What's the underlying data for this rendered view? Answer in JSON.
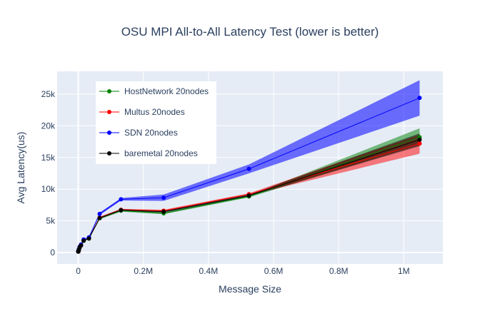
{
  "chart_data": {
    "type": "line",
    "title": "OSU MPI All-to-All Latency Test (lower is better)",
    "xlabel": "Message Size",
    "ylabel": "Avg Latency(us)",
    "xlim": [
      -65000,
      1120000
    ],
    "ylim": [
      -1800,
      28600
    ],
    "grid": true,
    "legend_position": "top-left",
    "x_ticks": [
      {
        "value": 0,
        "label": "0"
      },
      {
        "value": 200000,
        "label": "0.2M"
      },
      {
        "value": 400000,
        "label": "0.4M"
      },
      {
        "value": 600000,
        "label": "0.6M"
      },
      {
        "value": 800000,
        "label": "0.8M"
      },
      {
        "value": 1000000,
        "label": "1M"
      }
    ],
    "y_ticks": [
      {
        "value": 0,
        "label": "0"
      },
      {
        "value": 5000,
        "label": "5k"
      },
      {
        "value": 10000,
        "label": "10k"
      },
      {
        "value": 15000,
        "label": "15k"
      },
      {
        "value": 20000,
        "label": "20k"
      },
      {
        "value": 25000,
        "label": "25k"
      }
    ],
    "x": [
      1,
      2,
      4,
      8,
      16,
      32,
      64,
      128,
      256,
      512,
      1024,
      2048,
      4096,
      8192,
      16384,
      32768,
      65536,
      131072,
      262144,
      524288,
      1048576
    ],
    "series": [
      {
        "name": "HostNetwork 20nodes",
        "color": "#008000",
        "band_color": "rgba(0,128,0,0.5)",
        "values": [
          150,
          150,
          155,
          160,
          165,
          170,
          180,
          190,
          210,
          250,
          330,
          480,
          800,
          1100,
          1850,
          2200,
          5400,
          6600,
          6200,
          8850,
          18200
        ],
        "lower": [
          130,
          130,
          135,
          140,
          145,
          150,
          160,
          170,
          190,
          230,
          300,
          450,
          760,
          1050,
          1780,
          2120,
          5250,
          6450,
          6050,
          8700,
          17000
        ],
        "upper": [
          170,
          170,
          175,
          180,
          185,
          190,
          200,
          210,
          230,
          270,
          360,
          510,
          840,
          1150,
          1920,
          2280,
          5550,
          6750,
          6350,
          9000,
          19600
        ]
      },
      {
        "name": "Multus 20nodes",
        "color": "#ff0000",
        "band_color": "rgba(255,0,0,0.5)",
        "values": [
          150,
          150,
          155,
          160,
          165,
          170,
          180,
          190,
          210,
          250,
          330,
          480,
          820,
          1120,
          1900,
          2250,
          5500,
          6750,
          6600,
          9200,
          17200
        ],
        "lower": [
          130,
          130,
          135,
          140,
          145,
          150,
          160,
          170,
          190,
          230,
          300,
          450,
          780,
          1070,
          1830,
          2170,
          5350,
          6600,
          6450,
          9050,
          15600
        ],
        "upper": [
          170,
          170,
          175,
          180,
          185,
          190,
          200,
          210,
          230,
          270,
          360,
          510,
          860,
          1170,
          1970,
          2330,
          5650,
          6900,
          6750,
          9350,
          18600
        ]
      },
      {
        "name": "SDN 20nodes",
        "color": "#0000ff",
        "band_color": "rgba(0,0,255,0.55)",
        "values": [
          160,
          160,
          165,
          170,
          175,
          180,
          190,
          200,
          220,
          260,
          350,
          520,
          900,
          1250,
          2050,
          2400,
          6100,
          8400,
          8650,
          13200,
          24400
        ],
        "lower": [
          140,
          140,
          145,
          150,
          155,
          160,
          170,
          180,
          200,
          240,
          320,
          490,
          860,
          1200,
          1980,
          2320,
          5900,
          8200,
          8150,
          12500,
          21600
        ],
        "upper": [
          180,
          180,
          185,
          190,
          195,
          200,
          210,
          220,
          240,
          280,
          380,
          550,
          940,
          1300,
          2120,
          2480,
          6300,
          8600,
          9150,
          13900,
          27200
        ]
      },
      {
        "name": "baremetal 20nodes",
        "color": "#000000",
        "band_color": "rgba(0,0,0,0.5)",
        "values": [
          150,
          150,
          155,
          160,
          165,
          170,
          180,
          190,
          210,
          250,
          330,
          480,
          810,
          1110,
          1870,
          2230,
          5450,
          6700,
          6450,
          9000,
          17800
        ],
        "lower": [
          130,
          130,
          135,
          140,
          145,
          150,
          160,
          170,
          190,
          230,
          300,
          450,
          770,
          1060,
          1800,
          2150,
          5300,
          6550,
          6300,
          8850,
          16800
        ],
        "upper": [
          170,
          170,
          175,
          180,
          185,
          190,
          200,
          210,
          230,
          270,
          360,
          510,
          850,
          1160,
          1940,
          2310,
          5600,
          6850,
          6600,
          9150,
          18800
        ]
      }
    ]
  }
}
